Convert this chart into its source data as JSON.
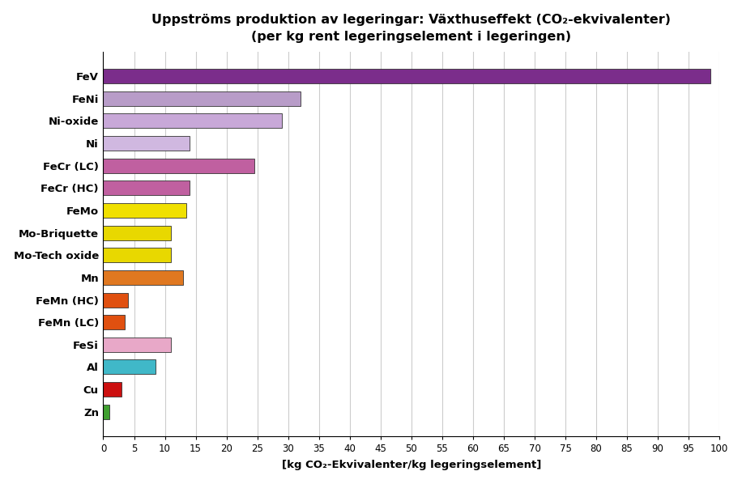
{
  "title_line1": "Uppströms produktion av legeringar: Växthuseffekt (CO₂-ekvivalenter)",
  "title_line2": "(per kg rent legeringselement i legeringen)",
  "xlabel": "[kg CO₂-Ekvivalenter/kg legeringselement]",
  "categories": [
    "FeV",
    "FeNi",
    "Ni-oxide",
    "Ni",
    "FeCr (LC)",
    "FeCr (HC)",
    "FeMo",
    "Mo-Briquette",
    "Mo-Tech oxide",
    "Mn",
    "FeMn (HC)",
    "FeMn (LC)",
    "FeSi",
    "Al",
    "Cu",
    "Zn"
  ],
  "values": [
    98.5,
    32.0,
    29.0,
    14.0,
    24.5,
    14.0,
    13.5,
    11.0,
    11.0,
    13.0,
    4.0,
    3.5,
    11.0,
    8.5,
    3.0,
    1.0
  ],
  "colors": [
    "#7B2D8B",
    "#B89CC8",
    "#C8A8D8",
    "#D0B8E0",
    "#C060A0",
    "#C060A0",
    "#F0E000",
    "#E8D800",
    "#E8D800",
    "#E07820",
    "#E05010",
    "#E05010",
    "#E8A8C8",
    "#40B8C8",
    "#CC1010",
    "#40A030"
  ],
  "xlim": [
    0,
    100
  ],
  "xticks": [
    0,
    5,
    10,
    15,
    20,
    25,
    30,
    35,
    40,
    45,
    50,
    55,
    60,
    65,
    70,
    75,
    80,
    85,
    90,
    95,
    100
  ],
  "bar_height": 0.65,
  "background_color": "#FFFFFF",
  "grid_color": "#CCCCCC"
}
